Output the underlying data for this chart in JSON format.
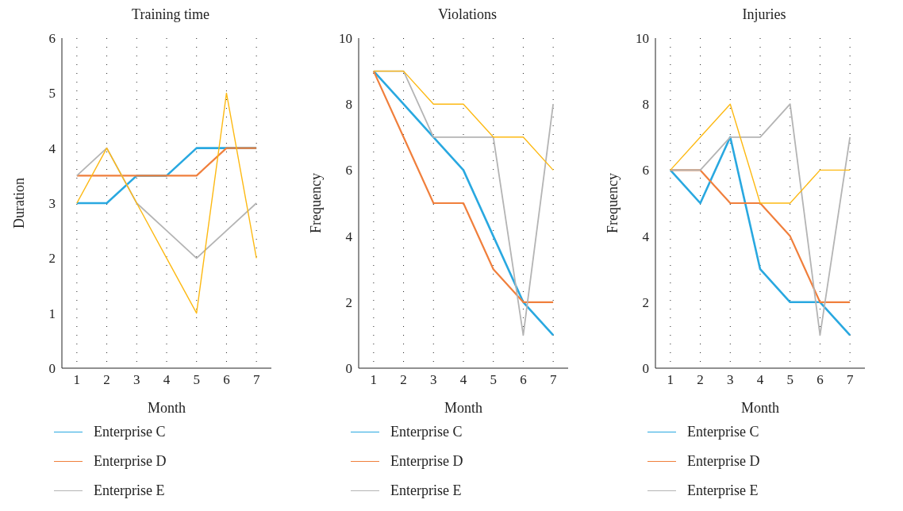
{
  "chart_data": [
    {
      "type": "line",
      "title": "Training time",
      "xlabel": "Month",
      "ylabel": "Duration",
      "x": [
        1,
        2,
        3,
        4,
        5,
        6,
        7
      ],
      "xlim": [
        0.5,
        7.5
      ],
      "xticks": [
        1,
        2,
        3,
        4,
        5,
        6,
        7
      ],
      "ylim": [
        0,
        6
      ],
      "yticks": [
        0,
        1,
        2,
        3,
        4,
        5,
        6
      ],
      "grid": "x",
      "legend": "bottom",
      "marker": "none",
      "line_style": "solid",
      "series": [
        {
          "name": "Enterprise C",
          "color": "#29a8e0",
          "values": [
            3,
            3,
            3.5,
            3.5,
            4,
            4,
            4
          ]
        },
        {
          "name": "Enterprise D",
          "color": "#f07f3c",
          "values": [
            3.5,
            3.5,
            3.5,
            3.5,
            3.5,
            4,
            4
          ]
        },
        {
          "name": "Enterprise E",
          "color": "#b4b4b4",
          "values": [
            3.5,
            4,
            3,
            2.5,
            2,
            2.5,
            3
          ]
        },
        {
          "color": "#fdb913",
          "values": [
            3,
            4,
            3,
            2,
            1,
            5,
            2
          ]
        }
      ]
    },
    {
      "type": "line",
      "title": "Violations",
      "xlabel": "Month",
      "ylabel": "Frequency",
      "x": [
        1,
        2,
        3,
        4,
        5,
        6,
        7
      ],
      "xlim": [
        0.5,
        7.5
      ],
      "xticks": [
        1,
        2,
        3,
        4,
        5,
        6,
        7
      ],
      "ylim": [
        0,
        10
      ],
      "yticks": [
        0,
        2,
        4,
        6,
        8,
        10
      ],
      "grid": "x",
      "legend": "bottom",
      "marker": "none",
      "line_style": "solid",
      "series": [
        {
          "name": "Enterprise C",
          "color": "#29a8e0",
          "values": [
            9,
            8,
            7,
            6,
            4,
            2,
            1
          ]
        },
        {
          "name": "Enterprise D",
          "color": "#f07f3c",
          "values": [
            9,
            7,
            5,
            5,
            3,
            2,
            2
          ]
        },
        {
          "name": "Enterprise E",
          "color": "#b4b4b4",
          "values": [
            9,
            9,
            7,
            7,
            7,
            1,
            8
          ]
        },
        {
          "color": "#fdb913",
          "values": [
            9,
            9,
            8,
            8,
            7,
            7,
            6
          ]
        }
      ]
    },
    {
      "type": "line",
      "title": "Injuries",
      "xlabel": "Month",
      "ylabel": "Frequency",
      "x": [
        1,
        2,
        3,
        4,
        5,
        6,
        7
      ],
      "xlim": [
        0.5,
        7.5
      ],
      "xticks": [
        1,
        2,
        3,
        4,
        5,
        6,
        7
      ],
      "ylim": [
        0,
        10
      ],
      "yticks": [
        0,
        2,
        4,
        6,
        8,
        10
      ],
      "grid": "x",
      "legend": "bottom",
      "marker": "none",
      "line_style": "solid",
      "series": [
        {
          "name": "Enterprise C",
          "color": "#29a8e0",
          "values": [
            6,
            5,
            7,
            3,
            2,
            2,
            1
          ]
        },
        {
          "name": "Enterprise D",
          "color": "#f07f3c",
          "values": [
            6,
            6,
            5,
            5,
            4,
            2,
            2
          ]
        },
        {
          "name": "Enterprise E",
          "color": "#b4b4b4",
          "values": [
            6,
            6,
            7,
            7,
            8,
            1,
            7
          ]
        },
        {
          "color": "#fdb913",
          "values": [
            6,
            7,
            8,
            5,
            5,
            6,
            6
          ]
        }
      ]
    }
  ]
}
